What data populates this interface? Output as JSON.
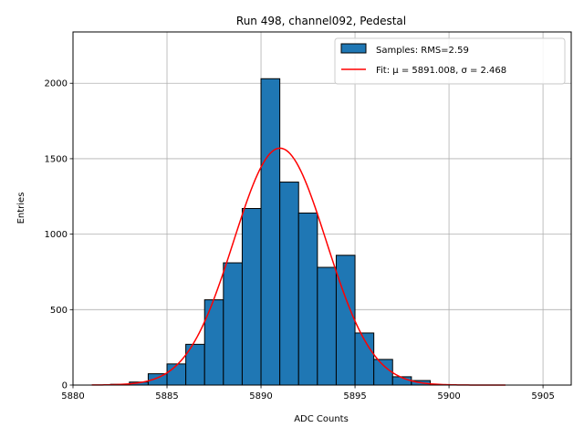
{
  "chart_data": {
    "type": "histogram",
    "title": "Run 498, channel092, Pedestal",
    "xlabel": "ADC Counts",
    "ylabel": "Entries",
    "xlim": [
      5880,
      5906.5
    ],
    "ylim": [
      0,
      2340
    ],
    "xticks": [
      5880,
      5885,
      5890,
      5895,
      5900,
      5905
    ],
    "yticks": [
      0,
      500,
      1000,
      1500,
      2000
    ],
    "grid": true,
    "legend_position": "top-right",
    "bars": {
      "name": "Samples: RMS=2.59",
      "bin_edges": [
        5882,
        5883,
        5884,
        5885,
        5886,
        5887,
        5888,
        5889,
        5890,
        5891,
        5892,
        5893,
        5894,
        5895,
        5896,
        5897,
        5898,
        5899
      ],
      "counts": [
        5,
        20,
        75,
        140,
        270,
        565,
        810,
        1170,
        2030,
        1345,
        1140,
        780,
        860,
        345,
        170,
        55,
        30
      ],
      "color": "#1f77b4"
    },
    "fit": {
      "name": "Fit: μ = 5891.008, σ = 2.468",
      "mu": 5891.008,
      "sigma": 2.468,
      "amplitude": 1570,
      "x_range": [
        5881,
        5903
      ],
      "color": "#ff0000"
    }
  }
}
